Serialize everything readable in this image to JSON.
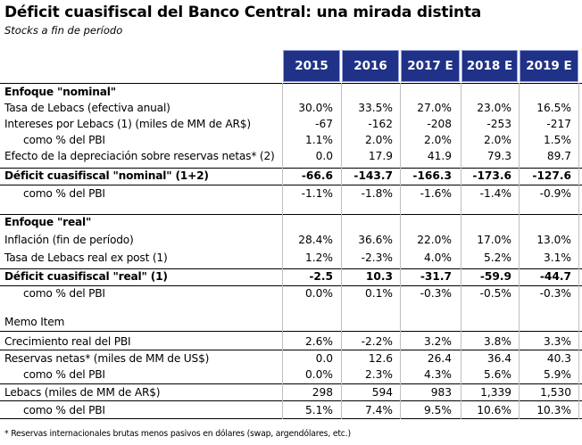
{
  "title": "Déficit cuasifiscal del Banco Central: una mirada distinta",
  "subtitle": "Stocks a fin de período",
  "columns": [
    "2015",
    "2016",
    "2017 E",
    "2018 E",
    "2019 E"
  ],
  "rows": [
    {
      "label": "Enfoque \"nominal\"",
      "style": "section",
      "values": []
    },
    {
      "label": "Tasa de Lebacs (efectiva anual)",
      "style": "normal",
      "values": [
        "30.0%",
        "33.5%",
        "27.0%",
        "23.0%",
        "16.5%"
      ]
    },
    {
      "label": "Intereses por Lebacs (1) (miles de MM de AR$)",
      "style": "normal",
      "values": [
        "-67",
        "-162",
        "-208",
        "-253",
        "-217"
      ]
    },
    {
      "label": "como % del PBI",
      "style": "indent",
      "values": [
        "1.1%",
        "2.0%",
        "2.0%",
        "2.0%",
        "1.5%"
      ]
    },
    {
      "label": "Efecto de la depreciación sobre reservas netas* (2)",
      "style": "normal",
      "values": [
        "0.0",
        "17.9",
        "41.9",
        "79.3",
        "89.7"
      ]
    },
    {
      "label": "Déficit cuasifiscal \"nominal\" (1+2)",
      "style": "bold",
      "values": [
        "-66.6",
        "-143.7",
        "-166.3",
        "-173.6",
        "-127.6"
      ]
    },
    {
      "label": "como % del PBI",
      "style": "indent",
      "values": [
        "-1.1%",
        "-1.8%",
        "-1.6%",
        "-1.4%",
        "-0.9%"
      ]
    },
    {
      "label": "Enfoque \"real\"",
      "style": "section",
      "values": []
    },
    {
      "label": "Inflación (fin de período)",
      "style": "normal",
      "values": [
        "28.4%",
        "36.6%",
        "22.0%",
        "17.0%",
        "13.0%"
      ]
    },
    {
      "label": "Tasa de Lebacs real ex post (1)",
      "style": "normal",
      "values": [
        "1.2%",
        "-2.3%",
        "4.0%",
        "5.2%",
        "3.1%"
      ]
    },
    {
      "label": "Déficit cuasifiscal \"real\" (1)",
      "style": "bold",
      "values": [
        "-2.5",
        "10.3",
        "-31.7",
        "-59.9",
        "-44.7"
      ]
    },
    {
      "label": "como % del PBI",
      "style": "indent",
      "values": [
        "0.0%",
        "0.1%",
        "-0.3%",
        "-0.5%",
        "-0.3%"
      ]
    },
    {
      "label": "Memo Item",
      "style": "plain",
      "values": []
    },
    {
      "label": "Crecimiento real del PBI",
      "style": "normal",
      "values": [
        "2.6%",
        "-2.2%",
        "3.2%",
        "3.8%",
        "3.3%"
      ]
    },
    {
      "label": "Reservas netas* (miles de MM de US$)",
      "style": "normal",
      "values": [
        "0.0",
        "12.6",
        "26.4",
        "36.4",
        "40.3"
      ]
    },
    {
      "label": "como % del PBI",
      "style": "indent",
      "values": [
        "0.0%",
        "2.3%",
        "4.3%",
        "5.6%",
        "5.9%"
      ]
    },
    {
      "label": "Lebacs (miles de MM de AR$)",
      "style": "normal",
      "values": [
        "298",
        "594",
        "983",
        "1,339",
        "1,530"
      ]
    },
    {
      "label": "como % del PBI",
      "style": "indent",
      "values": [
        "5.1%",
        "7.4%",
        "9.5%",
        "10.6%",
        "10.3%"
      ]
    }
  ],
  "footnote": "* Reservas internacionales brutas menos pasivos en dólares (swap, argendólares, etc.)",
  "colors": {
    "header_bg": "#1f3287",
    "header_text": "#ffffff"
  }
}
